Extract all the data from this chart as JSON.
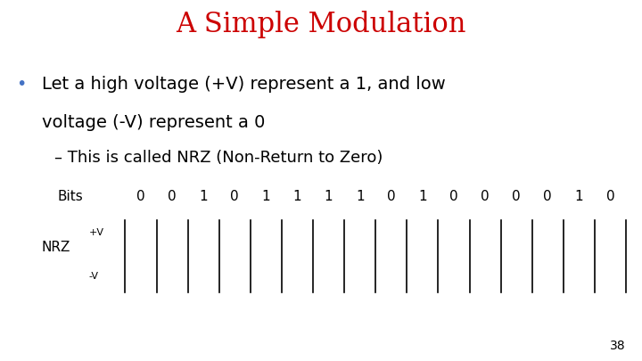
{
  "title": "A Simple Modulation",
  "title_color": "#CC0000",
  "title_fontsize": 22,
  "bullet_text_line1": "Let a high voltage (+V) represent a 1, and low",
  "bullet_text_line2": "voltage (-V) represent a 0",
  "sub_bullet": "This is called NRZ (Non-Return to Zero)",
  "bits_label": "Bits",
  "bits": [
    0,
    0,
    1,
    0,
    1,
    1,
    1,
    1,
    0,
    1,
    0,
    0,
    0,
    0,
    1,
    0
  ],
  "nrz_label": "NRZ",
  "nrz_plus": "+V",
  "nrz_minus": "-V",
  "page_number": "38",
  "background_color": "#ffffff",
  "text_color": "#000000",
  "bullet_color": "#4472C4",
  "waveform_color": "#000000",
  "body_fontsize": 14,
  "sub_fontsize": 13,
  "bits_fontsize": 11,
  "nrz_fontsize": 11,
  "page_fontsize": 10
}
